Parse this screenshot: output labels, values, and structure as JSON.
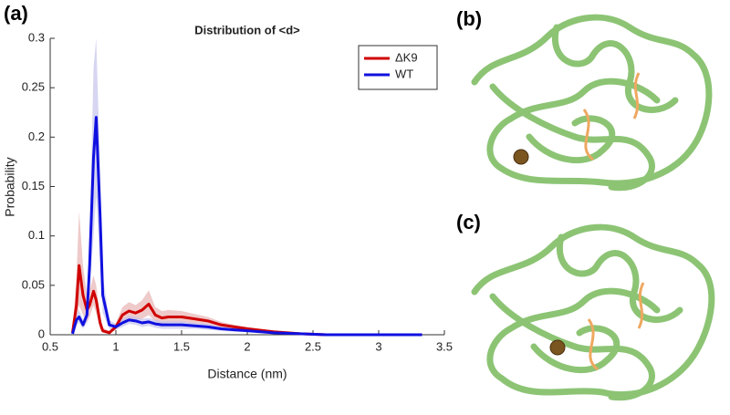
{
  "chart_data": {
    "type": "line",
    "title": "Distribution of <d>",
    "xlabel": "Distance (nm)",
    "ylabel": "Probability",
    "x": [
      0.67,
      0.7,
      0.72,
      0.75,
      0.78,
      0.8,
      0.83,
      0.85,
      0.88,
      0.9,
      0.95,
      1.0,
      1.05,
      1.1,
      1.15,
      1.2,
      1.25,
      1.3,
      1.35,
      1.4,
      1.5,
      1.6,
      1.7,
      1.8,
      1.9,
      2.0,
      2.2,
      2.4,
      2.6,
      2.8,
      3.0,
      3.33
    ],
    "series": [
      {
        "name": "ΔK9",
        "color": "#d00000",
        "band_color": "#e8b4b4",
        "values": [
          0.002,
          0.03,
          0.07,
          0.04,
          0.025,
          0.03,
          0.044,
          0.035,
          0.012,
          0.004,
          0.002,
          0.008,
          0.02,
          0.024,
          0.022,
          0.025,
          0.031,
          0.02,
          0.017,
          0.018,
          0.018,
          0.016,
          0.014,
          0.01,
          0.008,
          0.006,
          0.003,
          0.001,
          0,
          0,
          0,
          0
        ],
        "upper": [
          0.004,
          0.06,
          0.125,
          0.07,
          0.04,
          0.045,
          0.06,
          0.05,
          0.02,
          0.007,
          0.004,
          0.012,
          0.028,
          0.033,
          0.03,
          0.035,
          0.045,
          0.028,
          0.024,
          0.025,
          0.024,
          0.021,
          0.018,
          0.013,
          0.01,
          0.008,
          0.004,
          0.002,
          0.001,
          0,
          0,
          0
        ],
        "lower": [
          0.001,
          0.01,
          0.03,
          0.02,
          0.012,
          0.018,
          0.03,
          0.022,
          0.006,
          0.002,
          0.001,
          0.005,
          0.013,
          0.016,
          0.015,
          0.016,
          0.02,
          0.013,
          0.011,
          0.012,
          0.012,
          0.011,
          0.01,
          0.007,
          0.006,
          0.004,
          0.002,
          0.0005,
          0,
          0,
          0,
          0
        ]
      },
      {
        "name": "WT",
        "color": "#1010e0",
        "band_color": "#c4c4ec",
        "values": [
          0.001,
          0.015,
          0.018,
          0.01,
          0.02,
          0.07,
          0.18,
          0.22,
          0.12,
          0.04,
          0.01,
          0.008,
          0.012,
          0.015,
          0.014,
          0.012,
          0.013,
          0.011,
          0.01,
          0.01,
          0.01,
          0.009,
          0.008,
          0.006,
          0.005,
          0.004,
          0.002,
          0.001,
          0,
          0,
          0,
          0
        ],
        "upper": [
          0.002,
          0.02,
          0.025,
          0.015,
          0.03,
          0.1,
          0.27,
          0.3,
          0.17,
          0.06,
          0.015,
          0.011,
          0.016,
          0.019,
          0.018,
          0.016,
          0.017,
          0.015,
          0.014,
          0.014,
          0.014,
          0.012,
          0.011,
          0.008,
          0.007,
          0.005,
          0.003,
          0.0015,
          0,
          0,
          0,
          0
        ],
        "lower": [
          0,
          0.01,
          0.012,
          0.006,
          0.012,
          0.045,
          0.1,
          0.14,
          0.07,
          0.022,
          0.006,
          0.005,
          0.008,
          0.011,
          0.01,
          0.008,
          0.009,
          0.007,
          0.006,
          0.006,
          0.006,
          0.006,
          0.005,
          0.004,
          0.003,
          0.003,
          0.001,
          0.0005,
          0,
          0,
          0,
          0
        ]
      }
    ],
    "xlim": [
      0.5,
      3.5
    ],
    "xticks": [
      0.5,
      1,
      1.5,
      2,
      2.5,
      3,
      3.5
    ],
    "ylim": [
      0,
      0.3
    ],
    "yticks": [
      0,
      0.05,
      0.1,
      0.15,
      0.2,
      0.25,
      0.3
    ],
    "legend": "upper right"
  },
  "panel_labels": [
    "(a)",
    "(b)",
    "(c)"
  ]
}
